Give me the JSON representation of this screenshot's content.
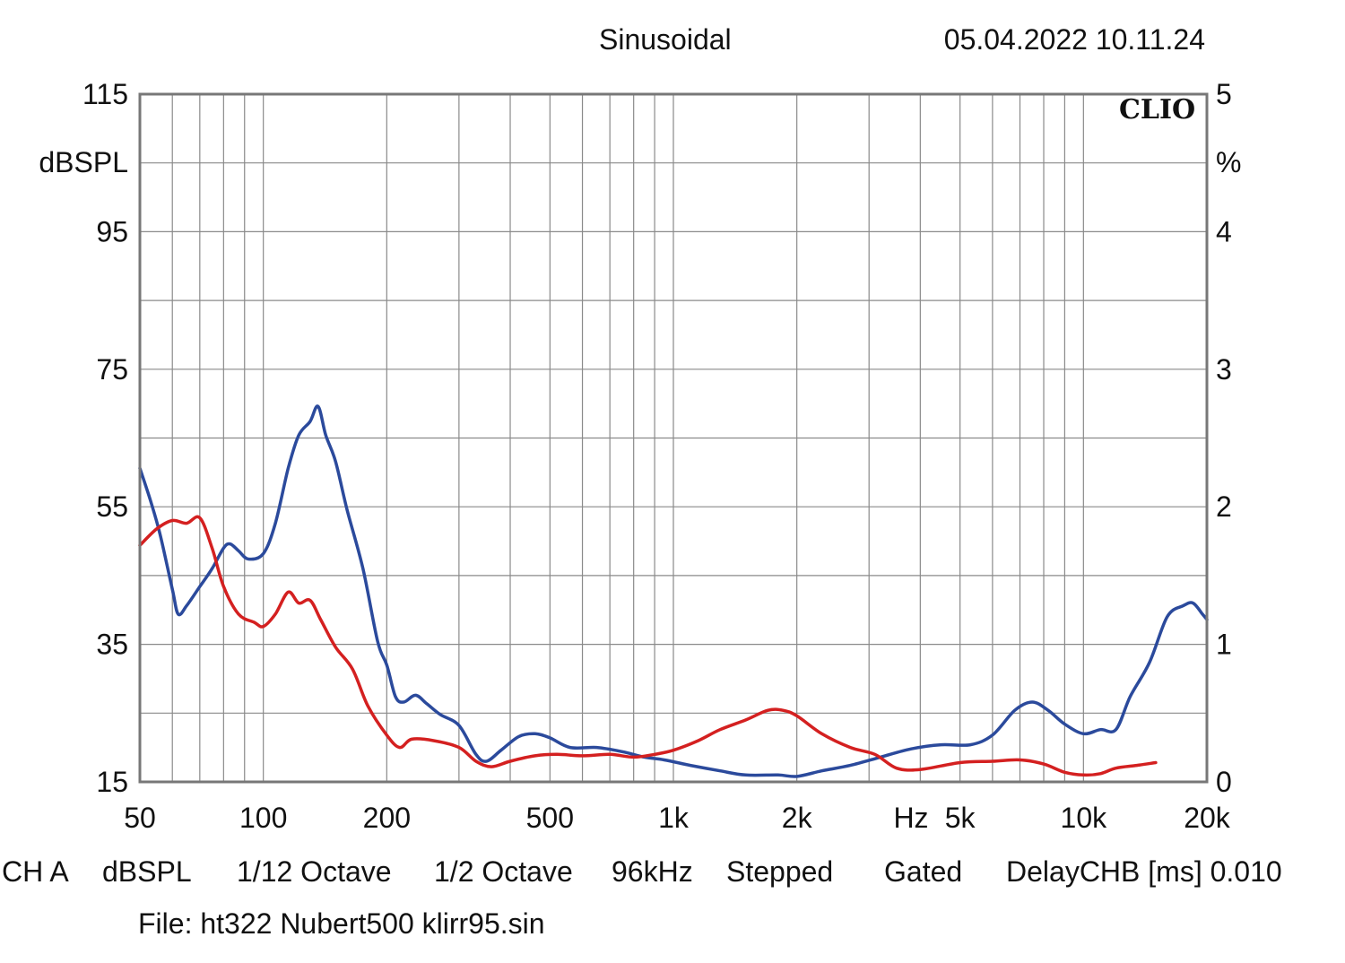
{
  "header": {
    "mode": "Sinusoidal",
    "datetime": "05.04.2022 10.11.24"
  },
  "logo": "CLIO",
  "footer": {
    "items": [
      "CH A",
      "dBSPL",
      "1/12 Octave",
      "1/2 Octave",
      "96kHz",
      "Stepped",
      "Gated",
      "DelayCHB [ms] 0.010"
    ],
    "file": "File: ht322 Nubert500 klirr95.sin"
  },
  "colors": {
    "series_blue": "#2b4a9c",
    "series_red": "#d42020",
    "grid": "#8a8a8a",
    "frame": "#777777"
  },
  "chart_data": {
    "type": "line",
    "xscale": "log",
    "xlim": [
      50,
      20000
    ],
    "x_ticks": [
      {
        "value": 50,
        "label": "50"
      },
      {
        "value": 100,
        "label": "100"
      },
      {
        "value": 200,
        "label": "200"
      },
      {
        "value": 500,
        "label": "500"
      },
      {
        "value": 1000,
        "label": "1k"
      },
      {
        "value": 2000,
        "label": "2k"
      },
      {
        "value": 5000,
        "label": "5k"
      },
      {
        "value": 10000,
        "label": "10k"
      },
      {
        "value": 20000,
        "label": "20k"
      }
    ],
    "x_unit_label": "Hz",
    "y_left": {
      "label": "dBSPL",
      "lim": [
        15,
        115
      ],
      "ticks": [
        115,
        95,
        75,
        55,
        35,
        15
      ]
    },
    "y_right": {
      "label": "%",
      "lim": [
        0,
        5
      ],
      "ticks": [
        5,
        4,
        3,
        2,
        1,
        0
      ]
    },
    "grid": true,
    "series": [
      {
        "color": "#2b4a9c",
        "axis": "right",
        "points": [
          [
            50,
            2.28
          ],
          [
            53,
            2.05
          ],
          [
            56,
            1.8
          ],
          [
            60,
            1.4
          ],
          [
            62,
            1.22
          ],
          [
            65,
            1.28
          ],
          [
            70,
            1.42
          ],
          [
            75,
            1.55
          ],
          [
            80,
            1.7
          ],
          [
            83,
            1.73
          ],
          [
            87,
            1.68
          ],
          [
            92,
            1.62
          ],
          [
            100,
            1.66
          ],
          [
            107,
            1.88
          ],
          [
            115,
            2.28
          ],
          [
            122,
            2.52
          ],
          [
            130,
            2.62
          ],
          [
            136,
            2.73
          ],
          [
            142,
            2.52
          ],
          [
            150,
            2.33
          ],
          [
            160,
            1.98
          ],
          [
            175,
            1.55
          ],
          [
            190,
            1.02
          ],
          [
            200,
            0.85
          ],
          [
            210,
            0.62
          ],
          [
            220,
            0.58
          ],
          [
            235,
            0.63
          ],
          [
            250,
            0.57
          ],
          [
            270,
            0.49
          ],
          [
            300,
            0.41
          ],
          [
            330,
            0.2
          ],
          [
            350,
            0.15
          ],
          [
            380,
            0.23
          ],
          [
            420,
            0.33
          ],
          [
            460,
            0.35
          ],
          [
            500,
            0.32
          ],
          [
            560,
            0.25
          ],
          [
            650,
            0.25
          ],
          [
            750,
            0.22
          ],
          [
            850,
            0.18
          ],
          [
            950,
            0.16
          ],
          [
            1100,
            0.12
          ],
          [
            1300,
            0.08
          ],
          [
            1500,
            0.05
          ],
          [
            1800,
            0.05
          ],
          [
            2000,
            0.04
          ],
          [
            2300,
            0.08
          ],
          [
            2700,
            0.12
          ],
          [
            3200,
            0.18
          ],
          [
            3800,
            0.24
          ],
          [
            4500,
            0.27
          ],
          [
            5300,
            0.27
          ],
          [
            6000,
            0.34
          ],
          [
            6800,
            0.52
          ],
          [
            7500,
            0.58
          ],
          [
            8200,
            0.52
          ],
          [
            9000,
            0.42
          ],
          [
            10000,
            0.35
          ],
          [
            11000,
            0.38
          ],
          [
            12000,
            0.38
          ],
          [
            13000,
            0.62
          ],
          [
            14500,
            0.87
          ],
          [
            16000,
            1.2
          ],
          [
            17500,
            1.28
          ],
          [
            18500,
            1.3
          ],
          [
            19500,
            1.22
          ],
          [
            20000,
            1.18
          ]
        ]
      },
      {
        "color": "#d42020",
        "axis": "right",
        "points": [
          [
            50,
            1.72
          ],
          [
            55,
            1.84
          ],
          [
            60,
            1.9
          ],
          [
            65,
            1.88
          ],
          [
            70,
            1.92
          ],
          [
            75,
            1.7
          ],
          [
            80,
            1.42
          ],
          [
            87,
            1.22
          ],
          [
            95,
            1.16
          ],
          [
            100,
            1.13
          ],
          [
            107,
            1.22
          ],
          [
            115,
            1.38
          ],
          [
            122,
            1.3
          ],
          [
            130,
            1.32
          ],
          [
            138,
            1.18
          ],
          [
            150,
            0.98
          ],
          [
            165,
            0.82
          ],
          [
            180,
            0.55
          ],
          [
            200,
            0.34
          ],
          [
            215,
            0.25
          ],
          [
            230,
            0.31
          ],
          [
            260,
            0.3
          ],
          [
            300,
            0.25
          ],
          [
            330,
            0.15
          ],
          [
            360,
            0.11
          ],
          [
            400,
            0.15
          ],
          [
            460,
            0.19
          ],
          [
            520,
            0.2
          ],
          [
            600,
            0.19
          ],
          [
            700,
            0.2
          ],
          [
            800,
            0.18
          ],
          [
            900,
            0.2
          ],
          [
            1000,
            0.23
          ],
          [
            1150,
            0.3
          ],
          [
            1300,
            0.38
          ],
          [
            1500,
            0.45
          ],
          [
            1700,
            0.52
          ],
          [
            1850,
            0.52
          ],
          [
            2000,
            0.48
          ],
          [
            2300,
            0.35
          ],
          [
            2700,
            0.25
          ],
          [
            3100,
            0.2
          ],
          [
            3500,
            0.1
          ],
          [
            4000,
            0.09
          ],
          [
            5000,
            0.14
          ],
          [
            6000,
            0.15
          ],
          [
            7000,
            0.16
          ],
          [
            8000,
            0.13
          ],
          [
            9000,
            0.07
          ],
          [
            10000,
            0.05
          ],
          [
            11000,
            0.06
          ],
          [
            12000,
            0.1
          ],
          [
            13500,
            0.12
          ],
          [
            15000,
            0.14
          ]
        ]
      }
    ]
  }
}
